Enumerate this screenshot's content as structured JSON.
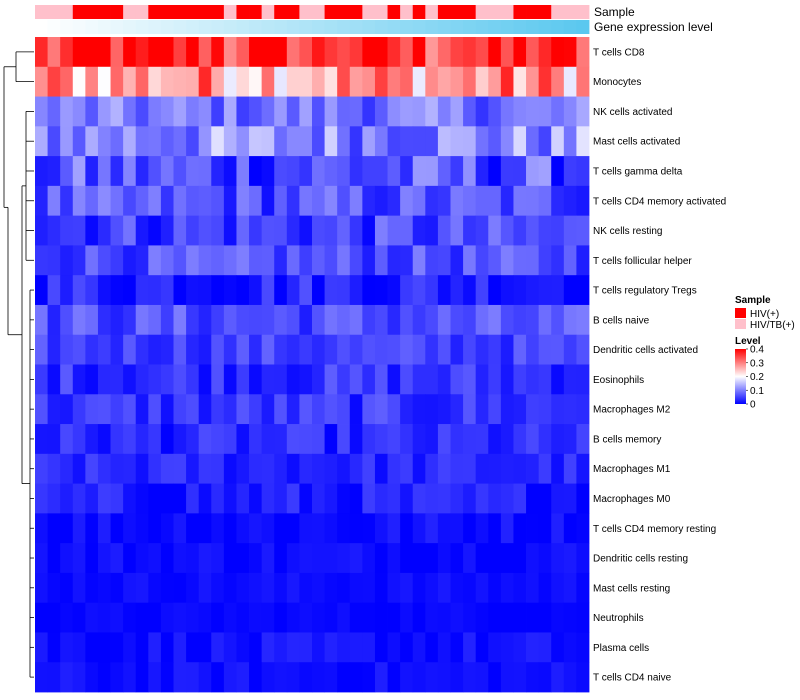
{
  "chart_data": {
    "type": "heatmap",
    "title": "",
    "rows": [
      "T cells CD8",
      "Monocytes",
      "NK cells activated",
      "Mast cells activated",
      "T cells gamma delta",
      "T cells CD4 memory activated",
      "NK cells resting",
      "T cells follicular helper",
      "T cells regulatory  Tregs",
      "B cells naive",
      "Dendritic cells activated",
      "Eosinophils",
      "Macrophages M2",
      "B cells memory",
      "Macrophages M1",
      "Macrophages M0",
      "T cells CD4 memory resting",
      "Dendritic cells resting",
      "Mast cells resting",
      "Neutrophils",
      "Plasma cells",
      "T cells CD4 naive"
    ],
    "column_count": 44,
    "annotations": {
      "sample_label": "Sample",
      "gene_expression_label": "Gene expression level",
      "sample_groups": [
        "HIV/TB(+)",
        "HIV/TB(+)",
        "HIV/TB(+)",
        "HIV(+)",
        "HIV(+)",
        "HIV(+)",
        "HIV(+)",
        "HIV/TB(+)",
        "HIV/TB(+)",
        "HIV(+)",
        "HIV(+)",
        "HIV(+)",
        "HIV(+)",
        "HIV(+)",
        "HIV(+)",
        "HIV/TB(+)",
        "HIV(+)",
        "HIV(+)",
        "HIV/TB(+)",
        "HIV(+)",
        "HIV(+)",
        "HIV/TB(+)",
        "HIV/TB(+)",
        "HIV(+)",
        "HIV(+)",
        "HIV(+)",
        "HIV/TB(+)",
        "HIV/TB(+)",
        "HIV(+)",
        "HIV/TB(+)",
        "HIV(+)",
        "HIV/TB(+)",
        "HIV(+)",
        "HIV(+)",
        "HIV(+)",
        "HIV/TB(+)",
        "HIV/TB(+)",
        "HIV/TB(+)",
        "HIV(+)",
        "HIV(+)",
        "HIV(+)",
        "HIV/TB(+)",
        "HIV/TB(+)",
        "HIV/TB(+)"
      ],
      "expression_gradient": [
        "#ffffff",
        "#5bc8ef"
      ]
    },
    "row_value_profile": [
      0.34,
      0.28,
      0.09,
      0.11,
      0.06,
      0.06,
      0.05,
      0.06,
      0.03,
      0.06,
      0.05,
      0.04,
      0.04,
      0.03,
      0.03,
      0.02,
      0.01,
      0.01,
      0.01,
      0.005,
      0.01,
      0.01
    ],
    "row_value_spread": [
      0.09,
      0.1,
      0.05,
      0.07,
      0.07,
      0.05,
      0.05,
      0.04,
      0.04,
      0.04,
      0.03,
      0.035,
      0.035,
      0.03,
      0.025,
      0.03,
      0.02,
      0.015,
      0.01,
      0.008,
      0.02,
      0.015
    ],
    "legend": {
      "sample": {
        "title": "Sample",
        "entries": [
          {
            "label": "HIV(+)",
            "color": "#ff0000"
          },
          {
            "label": "HIV/TB(+)",
            "color": "#ffc0cb"
          }
        ]
      },
      "level": {
        "title": "Level",
        "ticks": [
          0.4,
          0.3,
          0.2,
          0.1,
          0
        ],
        "range": [
          0,
          0.4
        ],
        "colors": [
          "#0000ff",
          "#ffffff",
          "#ff0000"
        ]
      }
    }
  }
}
